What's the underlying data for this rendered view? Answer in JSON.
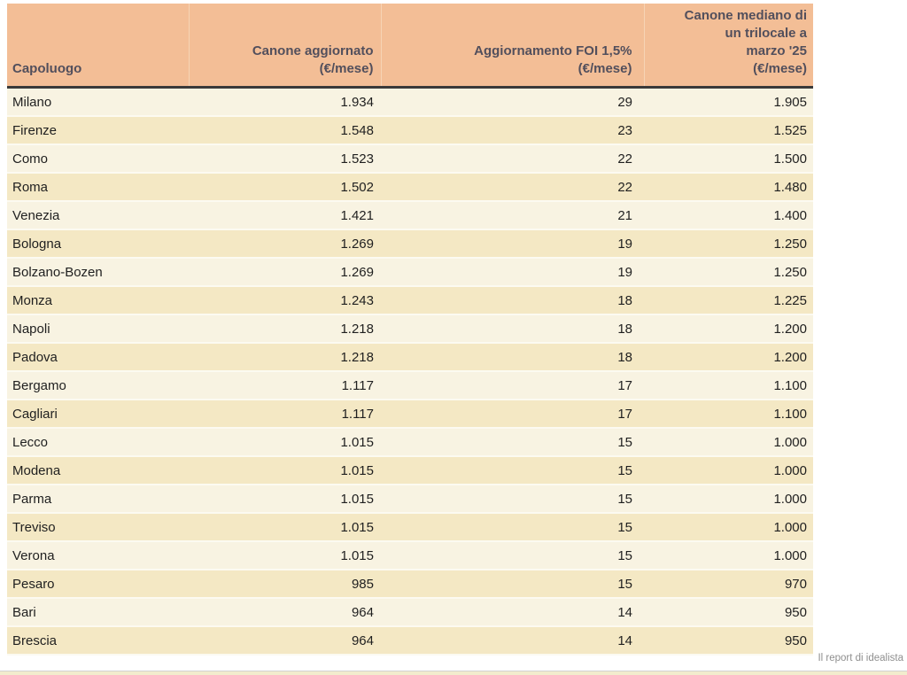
{
  "chart_data": {
    "type": "table",
    "columns": [
      "Capoluogo",
      "Canone aggiornato\n(€/mese)",
      "Aggiornamento FOI 1,5%\n(€/mese)",
      "Canone mediano di\nun trilocale a\nmarzo '25\n(€/mese)"
    ],
    "rows": [
      [
        "Milano",
        "1.934",
        "29",
        "1.905"
      ],
      [
        "Firenze",
        "1.548",
        "23",
        "1.525"
      ],
      [
        "Como",
        "1.523",
        "22",
        "1.500"
      ],
      [
        "Roma",
        "1.502",
        "22",
        "1.480"
      ],
      [
        "Venezia",
        "1.421",
        "21",
        "1.400"
      ],
      [
        "Bologna",
        "1.269",
        "19",
        "1.250"
      ],
      [
        "Bolzano-Bozen",
        "1.269",
        "19",
        "1.250"
      ],
      [
        "Monza",
        "1.243",
        "18",
        "1.225"
      ],
      [
        "Napoli",
        "1.218",
        "18",
        "1.200"
      ],
      [
        "Padova",
        "1.218",
        "18",
        "1.200"
      ],
      [
        "Bergamo",
        "1.117",
        "17",
        "1.100"
      ],
      [
        "Cagliari",
        "1.117",
        "17",
        "1.100"
      ],
      [
        "Lecco",
        "1.015",
        "15",
        "1.000"
      ],
      [
        "Modena",
        "1.015",
        "15",
        "1.000"
      ],
      [
        "Parma",
        "1.015",
        "15",
        "1.000"
      ],
      [
        "Treviso",
        "1.015",
        "15",
        "1.000"
      ],
      [
        "Verona",
        "1.015",
        "15",
        "1.000"
      ],
      [
        "Pesaro",
        "985",
        "15",
        "970"
      ],
      [
        "Bari",
        "964",
        "14",
        "950"
      ],
      [
        "Brescia",
        "964",
        "14",
        "950"
      ]
    ],
    "legend": null,
    "grid": false
  },
  "footer": {
    "credit": "Il report di idealista"
  },
  "colors": {
    "header_bg": "#f3be96",
    "header_text": "#524f5c",
    "header_border": "#3a3a3a",
    "row_light": "#f8f3e2",
    "row_dark": "#f4e8c4",
    "body_text": "#1f1f1f",
    "credit_text": "#8f8f8f",
    "bottom_strip": "#f2eccd"
  }
}
